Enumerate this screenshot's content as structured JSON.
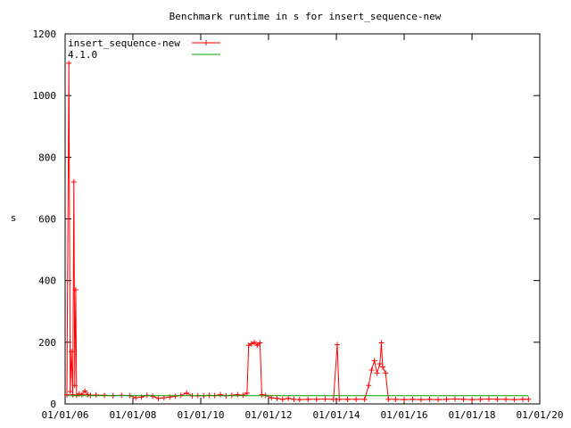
{
  "chart_data": {
    "type": "line",
    "title": "Benchmark runtime in s for insert_sequence-new",
    "xlabel": "",
    "ylabel": "s",
    "xlim": [
      "2006-01-01",
      "2020-01-01"
    ],
    "ylim": [
      0,
      1200
    ],
    "x_tick_labels": [
      "01/01/06",
      "01/01/08",
      "01/01/10",
      "01/01/12",
      "01/01/14",
      "01/01/16",
      "01/01/18",
      "01/01/20"
    ],
    "y_tick_labels": [
      "0",
      "200",
      "400",
      "600",
      "800",
      "1000",
      "1200"
    ],
    "y_ticks": [
      0,
      200,
      400,
      600,
      800,
      1000,
      1200
    ],
    "grid": false,
    "legend_position": "top-left",
    "series": [
      {
        "name": "insert_sequence-new",
        "color": "#ff0000",
        "marker": "plus",
        "points": [
          [
            "2006-01-20",
            30
          ],
          [
            "2006-02-10",
            1105
          ],
          [
            "2006-02-25",
            40
          ],
          [
            "2006-03-10",
            170
          ],
          [
            "2006-03-25",
            30
          ],
          [
            "2006-04-05",
            720
          ],
          [
            "2006-04-15",
            60
          ],
          [
            "2006-04-25",
            370
          ],
          [
            "2006-05-05",
            28
          ],
          [
            "2006-06-01",
            32
          ],
          [
            "2006-07-01",
            30
          ],
          [
            "2006-08-01",
            42
          ],
          [
            "2006-09-01",
            30
          ],
          [
            "2006-10-01",
            28
          ],
          [
            "2006-12-01",
            29
          ],
          [
            "2007-03-01",
            28
          ],
          [
            "2007-06-01",
            27
          ],
          [
            "2007-09-01",
            28
          ],
          [
            "2007-12-01",
            27
          ],
          [
            "2008-02-01",
            20
          ],
          [
            "2008-04-01",
            22
          ],
          [
            "2008-06-01",
            28
          ],
          [
            "2008-08-01",
            25
          ],
          [
            "2008-10-01",
            18
          ],
          [
            "2008-12-01",
            20
          ],
          [
            "2009-02-01",
            22
          ],
          [
            "2009-04-01",
            25
          ],
          [
            "2009-06-01",
            28
          ],
          [
            "2009-08-01",
            35
          ],
          [
            "2009-10-01",
            26
          ],
          [
            "2009-12-01",
            27
          ],
          [
            "2010-02-01",
            26
          ],
          [
            "2010-04-01",
            28
          ],
          [
            "2010-06-01",
            27
          ],
          [
            "2010-08-01",
            30
          ],
          [
            "2010-10-01",
            26
          ],
          [
            "2010-12-01",
            28
          ],
          [
            "2011-02-01",
            30
          ],
          [
            "2011-04-01",
            28
          ],
          [
            "2011-05-15",
            35
          ],
          [
            "2011-06-01",
            190
          ],
          [
            "2011-07-01",
            195
          ],
          [
            "2011-08-01",
            200
          ],
          [
            "2011-09-01",
            190
          ],
          [
            "2011-10-01",
            198
          ],
          [
            "2011-10-20",
            30
          ],
          [
            "2011-12-01",
            28
          ],
          [
            "2012-02-01",
            20
          ],
          [
            "2012-04-01",
            18
          ],
          [
            "2012-06-01",
            15
          ],
          [
            "2012-08-01",
            18
          ],
          [
            "2012-10-01",
            15
          ],
          [
            "2012-12-01",
            14
          ],
          [
            "2013-03-01",
            15
          ],
          [
            "2013-06-01",
            15
          ],
          [
            "2013-09-01",
            16
          ],
          [
            "2013-12-01",
            15
          ],
          [
            "2014-01-10",
            192
          ],
          [
            "2014-02-01",
            15
          ],
          [
            "2014-05-01",
            15
          ],
          [
            "2014-08-01",
            15
          ],
          [
            "2014-11-01",
            15
          ],
          [
            "2014-12-15",
            60
          ],
          [
            "2015-01-15",
            110
          ],
          [
            "2015-02-15",
            140
          ],
          [
            "2015-03-15",
            100
          ],
          [
            "2015-04-15",
            130
          ],
          [
            "2015-05-01",
            198
          ],
          [
            "2015-05-15",
            120
          ],
          [
            "2015-06-15",
            100
          ],
          [
            "2015-07-15",
            15
          ],
          [
            "2015-10-01",
            15
          ],
          [
            "2016-01-01",
            14
          ],
          [
            "2016-04-01",
            15
          ],
          [
            "2016-07-01",
            14
          ],
          [
            "2016-10-01",
            15
          ],
          [
            "2017-01-01",
            14
          ],
          [
            "2017-04-01",
            15
          ],
          [
            "2017-07-01",
            16
          ],
          [
            "2017-10-01",
            15
          ],
          [
            "2018-01-01",
            14
          ],
          [
            "2018-04-01",
            15
          ],
          [
            "2018-07-01",
            16
          ],
          [
            "2018-10-01",
            15
          ],
          [
            "2019-01-01",
            15
          ],
          [
            "2019-04-01",
            14
          ],
          [
            "2019-07-01",
            15
          ],
          [
            "2019-09-01",
            15
          ]
        ]
      },
      {
        "name": "4.1.0",
        "color": "#00a000",
        "marker": "none",
        "points": [
          [
            "2006-01-20",
            27
          ],
          [
            "2019-09-01",
            27
          ]
        ]
      }
    ]
  }
}
